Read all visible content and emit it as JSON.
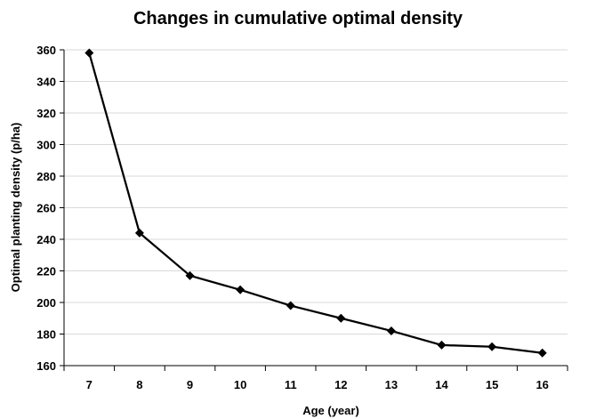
{
  "chart_data": {
    "type": "line",
    "title": "Changes in cumulative optimal density",
    "xlabel": "Age (year)",
    "ylabel": "Optimal planting density (p/ha)",
    "x": [
      7,
      8,
      9,
      10,
      11,
      12,
      13,
      14,
      15,
      16
    ],
    "series": [
      {
        "values": [
          358,
          244,
          217,
          208,
          198,
          190,
          182,
          173,
          172,
          168
        ],
        "color": "#000000",
        "marker": "diamond"
      }
    ],
    "ylim": [
      160,
      360
    ],
    "yticks": [
      160,
      180,
      200,
      220,
      240,
      260,
      280,
      300,
      320,
      340,
      360
    ],
    "grid": "horizontal",
    "legend": "none"
  }
}
